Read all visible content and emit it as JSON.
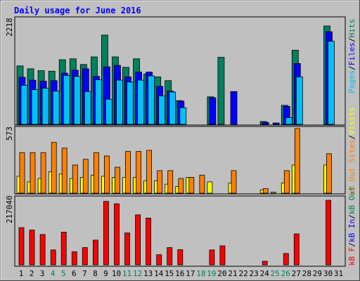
{
  "chart_data": [
    {
      "type": "bar",
      "title": "Daily usage for June 2016",
      "panel": "hits-files-pages",
      "categories": [
        "1",
        "2",
        "3",
        "4",
        "5",
        "6",
        "7",
        "8",
        "9",
        "10",
        "11",
        "12",
        "13",
        "14",
        "15",
        "16",
        "17",
        "18",
        "19",
        "20",
        "21",
        "22",
        "23",
        "24",
        "25",
        "26",
        "27",
        "28",
        "29",
        "30",
        "31"
      ],
      "weekend_days": [
        "4",
        "5",
        "11",
        "12",
        "18",
        "19",
        "25",
        "26"
      ],
      "ymax_label": "2218",
      "ylim": [
        0,
        2218
      ],
      "series": [
        {
          "name": "Hits",
          "color": "#00805c",
          "values": [
            1230,
            1170,
            1130,
            1120,
            1360,
            1380,
            1260,
            1420,
            1880,
            1420,
            1200,
            1380,
            1060,
            1000,
            920,
            500,
            0,
            0,
            580,
            1410,
            0,
            0,
            0,
            60,
            0,
            400,
            1560,
            0,
            0,
            2070,
            0
          ]
        },
        {
          "name": "Files",
          "color": "#0000ff",
          "values": [
            990,
            930,
            910,
            920,
            1080,
            1140,
            1170,
            1010,
            1210,
            1240,
            1000,
            1100,
            1100,
            800,
            700,
            490,
            0,
            0,
            560,
            0,
            690,
            0,
            0,
            40,
            30,
            380,
            1280,
            0,
            0,
            1950,
            0
          ]
        },
        {
          "name": "Pages",
          "color": "#00bfff",
          "values": [
            820,
            730,
            760,
            700,
            1030,
            1010,
            690,
            940,
            530,
            930,
            890,
            930,
            1020,
            600,
            680,
            350,
            0,
            0,
            0,
            0,
            0,
            0,
            0,
            0,
            0,
            140,
            1000,
            0,
            0,
            1750,
            0
          ]
        }
      ],
      "legend": [
        "Pages",
        "/",
        "Files",
        "/",
        "Hits"
      ]
    },
    {
      "type": "bar",
      "panel": "visits-sites",
      "ymax_label": "573",
      "ylim": [
        0,
        573
      ],
      "series": [
        {
          "name": "Visits",
          "color": "#ffff00",
          "values": [
            150,
            100,
            130,
            190,
            170,
            130,
            140,
            160,
            150,
            140,
            140,
            140,
            110,
            110,
            80,
            60,
            140,
            0,
            100,
            0,
            90,
            0,
            0,
            30,
            10,
            90,
            250,
            0,
            0,
            250,
            0
          ]
        },
        {
          "name": "Sites",
          "color": "#ff8000",
          "values": [
            360,
            360,
            360,
            450,
            400,
            250,
            300,
            360,
            330,
            230,
            370,
            370,
            380,
            200,
            200,
            130,
            140,
            160,
            0,
            0,
            200,
            0,
            0,
            40,
            0,
            200,
            573,
            0,
            0,
            350,
            0
          ]
        }
      ],
      "legend": [
        "Visits",
        "/",
        "Sites"
      ]
    },
    {
      "type": "bar",
      "panel": "kbytes",
      "ymax_label": "217040",
      "ylim": [
        0,
        217040
      ],
      "series": [
        {
          "name": "KBytes",
          "color": "#ff0000",
          "values": [
            125000,
            117000,
            102000,
            50000,
            110000,
            44000,
            58000,
            83000,
            213000,
            205000,
            107000,
            168000,
            157000,
            34000,
            58000,
            51000,
            0,
            0,
            50000,
            64000,
            0,
            0,
            0,
            12000,
            0,
            38000,
            104000,
            0,
            0,
            217040,
            0
          ]
        }
      ],
      "legend": [
        "kB F",
        "/",
        "kB In",
        "/",
        "kB Out"
      ],
      "legend_colors": [
        "#ff0000",
        "#0000ff",
        "#00805c"
      ]
    }
  ]
}
